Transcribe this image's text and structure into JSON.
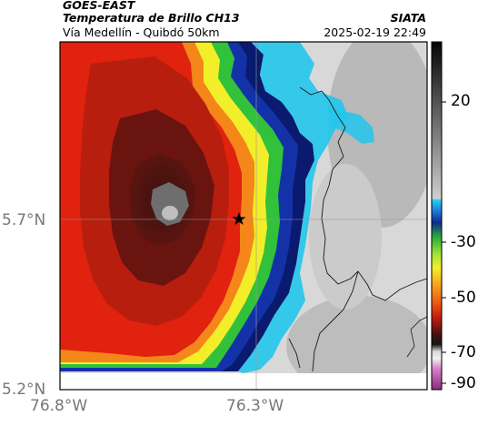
{
  "header": {
    "title": "GOES-EAST",
    "subtitle": "Temperatura de Brillo CH13",
    "location": "Vía Medellín - Quibdó 50km",
    "source": "SIATA",
    "datetime": "2025-02-19 22:49"
  },
  "map": {
    "lon_range": [
      -76.8,
      -76.0
    ],
    "lat_range": [
      5.2,
      6.2
    ],
    "x_ticks": [
      {
        "value": -76.8,
        "label": "76.8°W"
      },
      {
        "value": -76.3,
        "label": "76.3°W"
      }
    ],
    "y_ticks": [
      {
        "value": 5.7,
        "label": "5.7°N"
      },
      {
        "value": 5.2,
        "label": "5.2°N"
      }
    ],
    "marker": {
      "name": "star-marker",
      "lon": -76.42,
      "lat": 5.7
    },
    "colors": {
      "cold_core": "#1a0d0d",
      "deep_red": "#b81e0e",
      "red": "#e0220f",
      "orange": "#f5861a",
      "yellow": "#f3ee2a",
      "green": "#31c13b",
      "cyan": "#22c6ec",
      "blue": "#1432a8",
      "navy": "#0a1a6e",
      "warm_gray": "#d6d6d6"
    }
  },
  "colorbar": {
    "range": [
      -90,
      30
    ],
    "ticks": [
      {
        "value": 20,
        "label": "20"
      },
      {
        "value": -30,
        "label": "-30"
      },
      {
        "value": -50,
        "label": "-50"
      },
      {
        "value": -70,
        "label": "-70"
      },
      {
        "value": -90,
        "label": "-90"
      }
    ]
  }
}
